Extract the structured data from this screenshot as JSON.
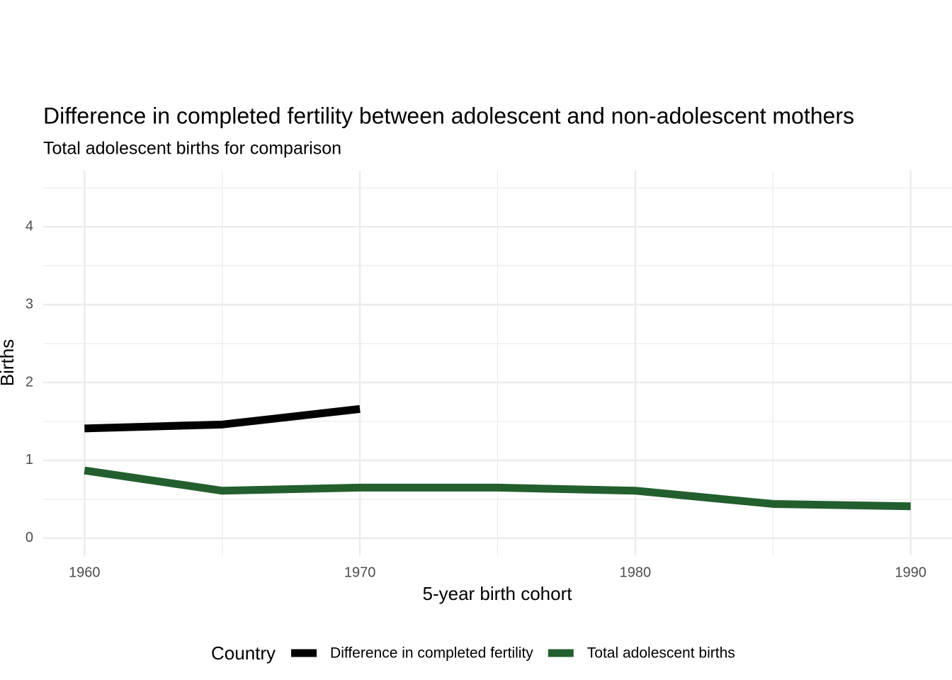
{
  "chart_data": {
    "type": "line",
    "title": "Difference in completed fertility between adolescent and non-adolescent mothers",
    "subtitle": "Total adolescent births for comparison",
    "x_label": "5-year birth cohort",
    "y_label": "Births",
    "legend_title": "Country",
    "legend_position": "bottom",
    "grid": true,
    "x": [
      1960,
      1965,
      1970,
      1975,
      1980,
      1985,
      1990
    ],
    "series": [
      {
        "name": "Difference in completed fertility",
        "color": "#000000",
        "values": [
          1.41,
          1.46,
          1.66,
          null,
          null,
          null,
          null
        ]
      },
      {
        "name": "Total adolescent births",
        "color": "#235f2e",
        "values": [
          0.87,
          0.61,
          0.65,
          0.65,
          0.61,
          0.44,
          0.41
        ]
      }
    ],
    "xlim": [
      1958.5,
      1991.5
    ],
    "xticks": [
      1960,
      1970,
      1980,
      1990
    ],
    "ylim": [
      -0.22,
      4.72
    ],
    "yticks": [
      0,
      1,
      2,
      3,
      4
    ]
  }
}
